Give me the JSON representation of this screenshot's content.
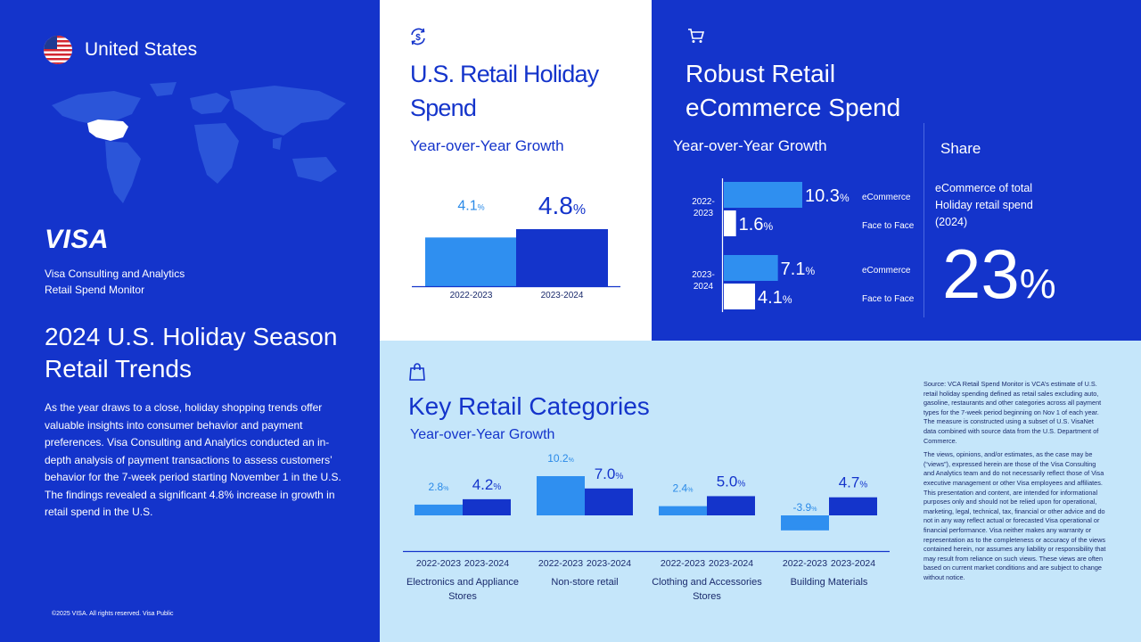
{
  "left_panel": {
    "country": "United States",
    "brand": "VISA",
    "subtitle_line1": "Visa Consulting and Analytics",
    "subtitle_line2": "Retail Spend Monitor",
    "title": "2024 U.S. Holiday Season Retail Trends",
    "intro": "As the year draws to a close, holiday shopping trends offer valuable insights into consumer behavior and payment preferences. Visa Consulting and Analytics conducted an in-depth analysis of payment transactions to assess customers’ behavior for the 7-week period starting November 1 in the U.S. The findings revealed a significant 4.8% increase in growth in retail spend in the U.S.",
    "copyright": "©2025 VISA. All rights reserved. Visa Public"
  },
  "retail_panel": {
    "icon": "dollar-cycle-icon",
    "title": "U.S. Retail Holiday Spend",
    "subtitle": "Year-over-Year Growth"
  },
  "ecom_panel": {
    "icon": "shopping-cart-icon",
    "title": "Robust Retail eCommerce Spend",
    "subtitle": "Year-over-Year Growth",
    "share_heading": "Share",
    "share_desc": "eCommerce of total Holiday retail spend (2024)",
    "share_value": "23",
    "share_unit": "%"
  },
  "cats_panel": {
    "icon": "shopping-bag-icon",
    "title": "Key Retail Categories",
    "subtitle": "Year-over-Year Growth",
    "source_p1": "Source: VCA Retail Spend Monitor is VCA’s estimate of U.S. retail holiday spending defined as retail sales excluding auto, gasoline, restaurants and other categories across all payment types for the 7-week period beginning on Nov 1 of each year. The measure is constructed using a subset of U.S. VisaNet data combined with source data from the U.S. Department of Commerce.",
    "source_p2": "The views, opinions, and/or estimates, as the case may be (“views”), expressed herein are those of the Visa Consulting and Analytics team and do not necessarily reflect those of Visa executive management or other Visa employees and affiliates. This presentation and content, are intended for informational purposes only and should not be relied upon for operational, marketing, legal, technical, tax, financial or other advice and do not in any way reflect actual or forecasted Visa operational or financial performance. Visa neither makes any warranty or representation as to the completeness or accuracy of the views contained herein, nor assumes any liability or responsibility that may result from reliance on such views. These views are often based on current market conditions and are subject to change without notice."
  },
  "colors": {
    "visa_blue": "#1434CB",
    "light_bar": "#2F8FF0",
    "dark_bar": "#1434CB",
    "light_bg": "#C5E6FA",
    "value_light": "#2A8AE8"
  },
  "chart_data": [
    {
      "type": "bar",
      "categories": [
        "2022-2023",
        "2023-2024"
      ],
      "values": [
        4.1,
        4.8
      ],
      "value_labels": [
        "4.1",
        "4.8"
      ],
      "unit": "%",
      "ylim": [
        0,
        4.8
      ],
      "grid": false
    },
    {
      "type": "bar",
      "orientation": "horizontal",
      "groups": [
        {
          "label": "2022-2023",
          "bars": [
            {
              "name": "eCommerce",
              "value": 10.3,
              "label": "10.3"
            },
            {
              "name": "Face to Face",
              "value": 1.6,
              "label": "1.6"
            }
          ]
        },
        {
          "label": "2023-2024",
          "bars": [
            {
              "name": "eCommerce",
              "value": 7.1,
              "label": "7.1"
            },
            {
              "name": "Face to Face",
              "value": 4.1,
              "label": "4.1"
            }
          ]
        }
      ],
      "unit": "%",
      "xlim": [
        0,
        10.3
      ],
      "grid": false
    },
    {
      "type": "bar",
      "categories": [
        "Electronics and Appliance Stores",
        "Non-store retail",
        "Clothing and Accessories Stores",
        "Building Materials"
      ],
      "series": [
        {
          "name": "2022-2023",
          "values": [
            2.8,
            10.2,
            2.4,
            -3.9
          ],
          "labels": [
            "2.8",
            "10.2",
            "2.4",
            "-3.9"
          ]
        },
        {
          "name": "2023-2024",
          "values": [
            4.2,
            7.0,
            5.0,
            4.7
          ],
          "labels": [
            "4.2",
            "7.0",
            "5.0",
            "4.7"
          ]
        }
      ],
      "unit": "%",
      "ylim": [
        -3.9,
        10.2
      ],
      "grid": false
    }
  ]
}
